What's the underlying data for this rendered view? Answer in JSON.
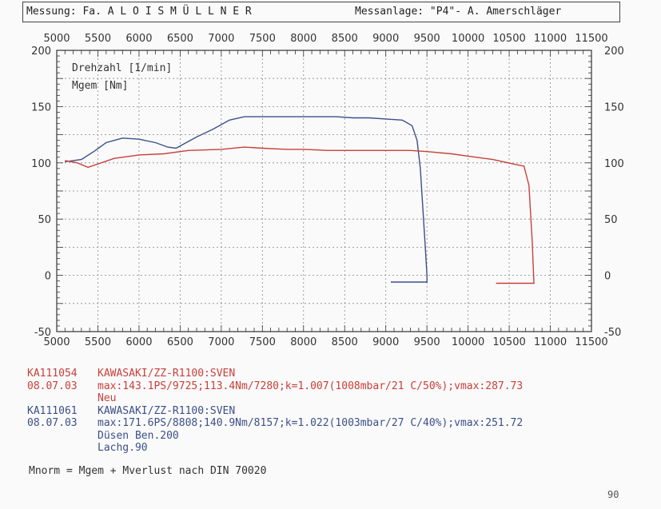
{
  "header": {
    "left": "Messung: Fa. A L O I S  M Ü L L N E R",
    "right": "Messanlage: \"P4\"- A. Amerschläger"
  },
  "chart_data": {
    "type": "line",
    "xlim": [
      5000,
      11500
    ],
    "ylim": [
      -50,
      200
    ],
    "x_ticks": [
      "5000",
      "5500",
      "6000",
      "6500",
      "7000",
      "7500",
      "8000",
      "8500",
      "9000",
      "9500",
      "10000",
      "10500",
      "11000",
      "11500"
    ],
    "y_ticks_left": [
      "200",
      "150",
      "100",
      "50",
      "0",
      "-50"
    ],
    "y_ticks_right": [
      "200",
      "150",
      "100",
      "50",
      "0",
      "-50"
    ],
    "legend": [
      "Drehzahl [1/min]",
      "Mgem [Nm]"
    ],
    "series": [
      {
        "color": "#3c4f8a",
        "points": [
          [
            5100,
            101
          ],
          [
            5300,
            103
          ],
          [
            5450,
            110
          ],
          [
            5600,
            118
          ],
          [
            5800,
            122
          ],
          [
            6000,
            121
          ],
          [
            6200,
            118
          ],
          [
            6350,
            114
          ],
          [
            6450,
            113
          ],
          [
            6550,
            117
          ],
          [
            6700,
            123
          ],
          [
            6900,
            130
          ],
          [
            7100,
            138
          ],
          [
            7280,
            141
          ],
          [
            7500,
            141
          ],
          [
            7800,
            141
          ],
          [
            8000,
            141
          ],
          [
            8200,
            141
          ],
          [
            8400,
            141
          ],
          [
            8600,
            140
          ],
          [
            8800,
            140
          ],
          [
            9000,
            139
          ],
          [
            9200,
            138
          ],
          [
            9320,
            133
          ],
          [
            9380,
            120
          ],
          [
            9420,
            95
          ],
          [
            9450,
            60
          ],
          [
            9480,
            25
          ],
          [
            9500,
            0
          ],
          [
            9500,
            -6
          ],
          [
            9400,
            -6
          ],
          [
            9300,
            -6
          ],
          [
            9200,
            -6
          ],
          [
            9060,
            -6
          ]
        ]
      },
      {
        "color": "#c8403a",
        "points": [
          [
            5100,
            102
          ],
          [
            5250,
            100
          ],
          [
            5380,
            96
          ],
          [
            5500,
            99
          ],
          [
            5700,
            104
          ],
          [
            6000,
            107
          ],
          [
            6300,
            108
          ],
          [
            6600,
            111
          ],
          [
            7000,
            112
          ],
          [
            7280,
            114
          ],
          [
            7500,
            113
          ],
          [
            7800,
            112
          ],
          [
            8000,
            112
          ],
          [
            8300,
            111
          ],
          [
            8600,
            111
          ],
          [
            9000,
            111
          ],
          [
            9300,
            111
          ],
          [
            9500,
            110
          ],
          [
            9800,
            108
          ],
          [
            10000,
            106
          ],
          [
            10300,
            103
          ],
          [
            10550,
            99
          ],
          [
            10680,
            97
          ],
          [
            10740,
            80
          ],
          [
            10780,
            30
          ],
          [
            10800,
            -7
          ],
          [
            10700,
            -7
          ],
          [
            10500,
            -7
          ],
          [
            10340,
            -7
          ]
        ]
      }
    ]
  },
  "records": [
    {
      "code": "KA111054",
      "date": "08.07.03",
      "color": "#c8403a",
      "lines": [
        "KAWASAKI/ZZ-R1100:SVEN",
        "max:143.1PS/9725;113.4Nm/7280;k=1.007(1008mbar/21 C/50%);vmax:287.73",
        "Neu"
      ]
    },
    {
      "code": "KA111061",
      "date": "08.07.03",
      "color": "#3c4f8a",
      "lines": [
        "KAWASAKI/ZZ-R1100:SVEN",
        "max:171.6PS/8808;140.9Nm/8157;k=1.022(1003mbar/27 C/40%);vmax:251.72",
        "Düsen Ben.200",
        "Lachg.90"
      ]
    }
  ],
  "footer": "Mnorm = Mgem + Mverlust nach DIN 70020",
  "corner": "90"
}
